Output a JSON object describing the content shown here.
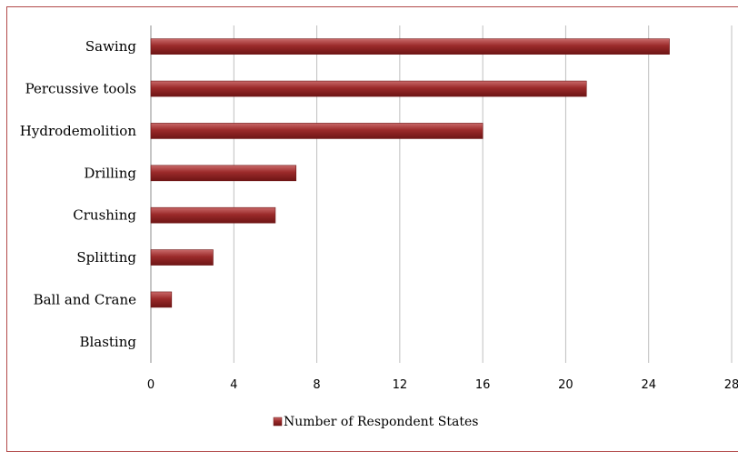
{
  "chart_data": {
    "type": "bar",
    "orientation": "horizontal",
    "categories": [
      "Sawing",
      "Percussive tools",
      "Hydrodemolition",
      "Drilling",
      "Crushing",
      "Splitting",
      "Ball and Crane",
      "Blasting"
    ],
    "series": [
      {
        "name": "Number of Respondent States",
        "values": [
          25,
          21,
          16,
          7,
          6,
          3,
          1,
          0
        ]
      }
    ],
    "xlim": [
      0,
      28
    ],
    "xticks": [
      "0",
      "4",
      "8",
      "12",
      "16",
      "20",
      "24",
      "28"
    ],
    "grid": "vertical",
    "legend_position": "bottom",
    "colors": {
      "bar": "#9b2a2a",
      "bar_light": "#c96a6a",
      "bar_dark": "#6e1515",
      "grid": "#bfbfbf",
      "border": "#b24a4a"
    },
    "title": "",
    "xlabel": "",
    "ylabel": ""
  }
}
